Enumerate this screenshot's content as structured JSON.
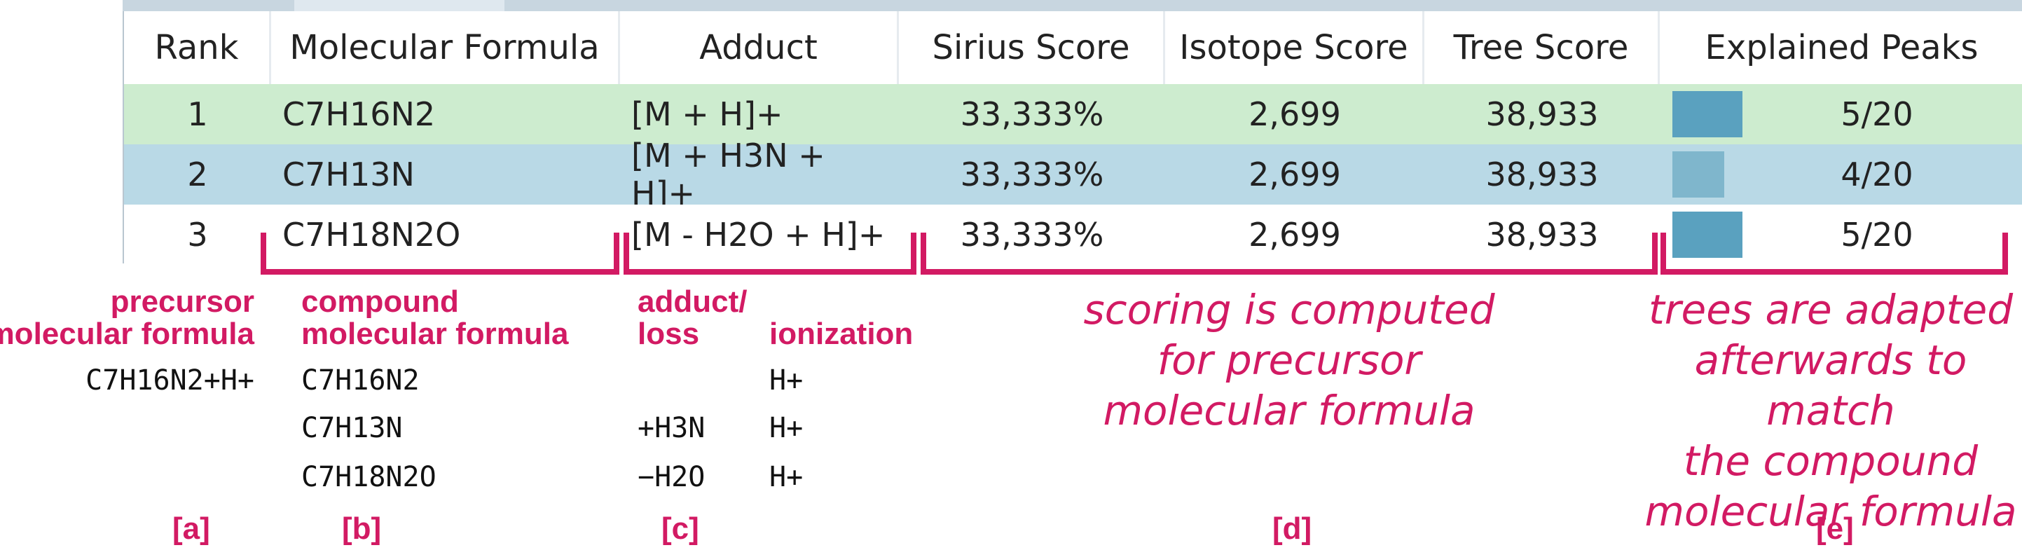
{
  "table": {
    "headers": [
      "Rank",
      "Molecular Formula",
      "Adduct",
      "Sirius Score",
      "Isotope Score",
      "Tree Score",
      "Explained Peaks"
    ],
    "rows": [
      {
        "rank": "1",
        "formula": "C7H16N2",
        "adduct": "[M + H]+",
        "sirius": "33,333%",
        "isotope": "2,699",
        "tree": "38,933",
        "peaks": "5/20",
        "peaks_fraction": 0.25
      },
      {
        "rank": "2",
        "formula": "C7H13N",
        "adduct": "[M + H3N + H]+",
        "sirius": "33,333%",
        "isotope": "2,699",
        "tree": "38,933",
        "peaks": "4/20",
        "peaks_fraction": 0.2
      },
      {
        "rank": "3",
        "formula": "C7H18N2O",
        "adduct": "[M - H2O + H]+",
        "sirius": "33,333%",
        "isotope": "2,699",
        "tree": "38,933",
        "peaks": "5/20",
        "peaks_fraction": 0.25
      }
    ],
    "row_colors": [
      "#cdeccf",
      "#b9d9e6",
      "#ffffff"
    ],
    "bar_color": "#5aa1bf"
  },
  "annotations": {
    "a": {
      "heading_line1": "precursor",
      "heading_line2": "molecular formula",
      "value": "C7H16N2+H+",
      "tag": "[a]"
    },
    "b": {
      "heading_line1": "compound",
      "heading_line2": "molecular formula",
      "values": [
        "C7H16N2",
        "C7H13N",
        "C7H18N2O"
      ],
      "tag": "[b]"
    },
    "c": {
      "heading_adduct_line1": "adduct/",
      "heading_adduct_line2": "loss",
      "heading_ionization": "ionization",
      "adducts": [
        "",
        "+H3N",
        "−H2O"
      ],
      "ionizations": [
        "H+",
        "H+",
        "H+"
      ],
      "tag": "[c]"
    },
    "d": {
      "lines": [
        "scoring is computed",
        "for precursor",
        "molecular formula"
      ],
      "tag": "[d]"
    },
    "e": {
      "lines": [
        "trees are adapted",
        "afterwards to match",
        "the compound",
        "molecular formula"
      ],
      "tag": "[e]"
    },
    "accent_color": "#d21a63"
  }
}
